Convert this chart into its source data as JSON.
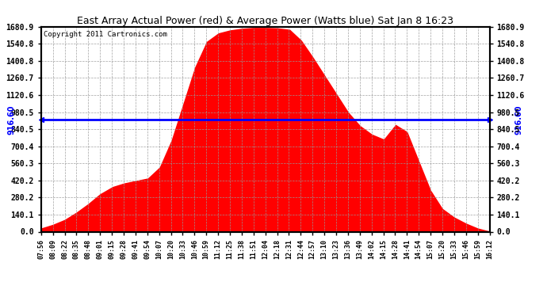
{
  "title": "East Array Actual Power (red) & Average Power (Watts blue) Sat Jan 8 16:23",
  "copyright": "Copyright 2011 Cartronics.com",
  "avg_power": 916.6,
  "y_max": 1680.9,
  "y_ticks": [
    0.0,
    140.1,
    280.2,
    420.2,
    560.3,
    700.4,
    840.5,
    980.5,
    1120.6,
    1260.7,
    1400.8,
    1540.8,
    1680.9
  ],
  "fill_color": "red",
  "avg_line_color": "blue",
  "background_color": "white",
  "grid_color": "#999999",
  "x_labels": [
    "07:56",
    "08:09",
    "08:22",
    "08:35",
    "08:48",
    "09:01",
    "09:15",
    "09:28",
    "09:41",
    "09:54",
    "10:07",
    "10:20",
    "10:33",
    "10:46",
    "10:59",
    "11:12",
    "11:25",
    "11:38",
    "11:51",
    "12:04",
    "12:18",
    "12:31",
    "12:44",
    "12:57",
    "13:10",
    "13:23",
    "13:36",
    "13:49",
    "14:02",
    "14:15",
    "14:28",
    "14:41",
    "14:54",
    "15:07",
    "15:20",
    "15:33",
    "15:46",
    "15:59",
    "16:12"
  ],
  "key_times_min": [
    0,
    13,
    26,
    39,
    52,
    65,
    79,
    92,
    105,
    118,
    131,
    144,
    157,
    170,
    183,
    196,
    209,
    222,
    235,
    248,
    261,
    275,
    288,
    301,
    314,
    327,
    340,
    353,
    366,
    379,
    392,
    405,
    418,
    431,
    444,
    457,
    470,
    483,
    496
  ],
  "key_values": [
    30,
    60,
    100,
    160,
    230,
    310,
    370,
    400,
    420,
    440,
    530,
    750,
    1050,
    1350,
    1560,
    1630,
    1655,
    1668,
    1675,
    1675,
    1672,
    1660,
    1570,
    1430,
    1280,
    1130,
    980,
    870,
    800,
    760,
    880,
    820,
    580,
    340,
    190,
    120,
    70,
    30,
    5
  ]
}
